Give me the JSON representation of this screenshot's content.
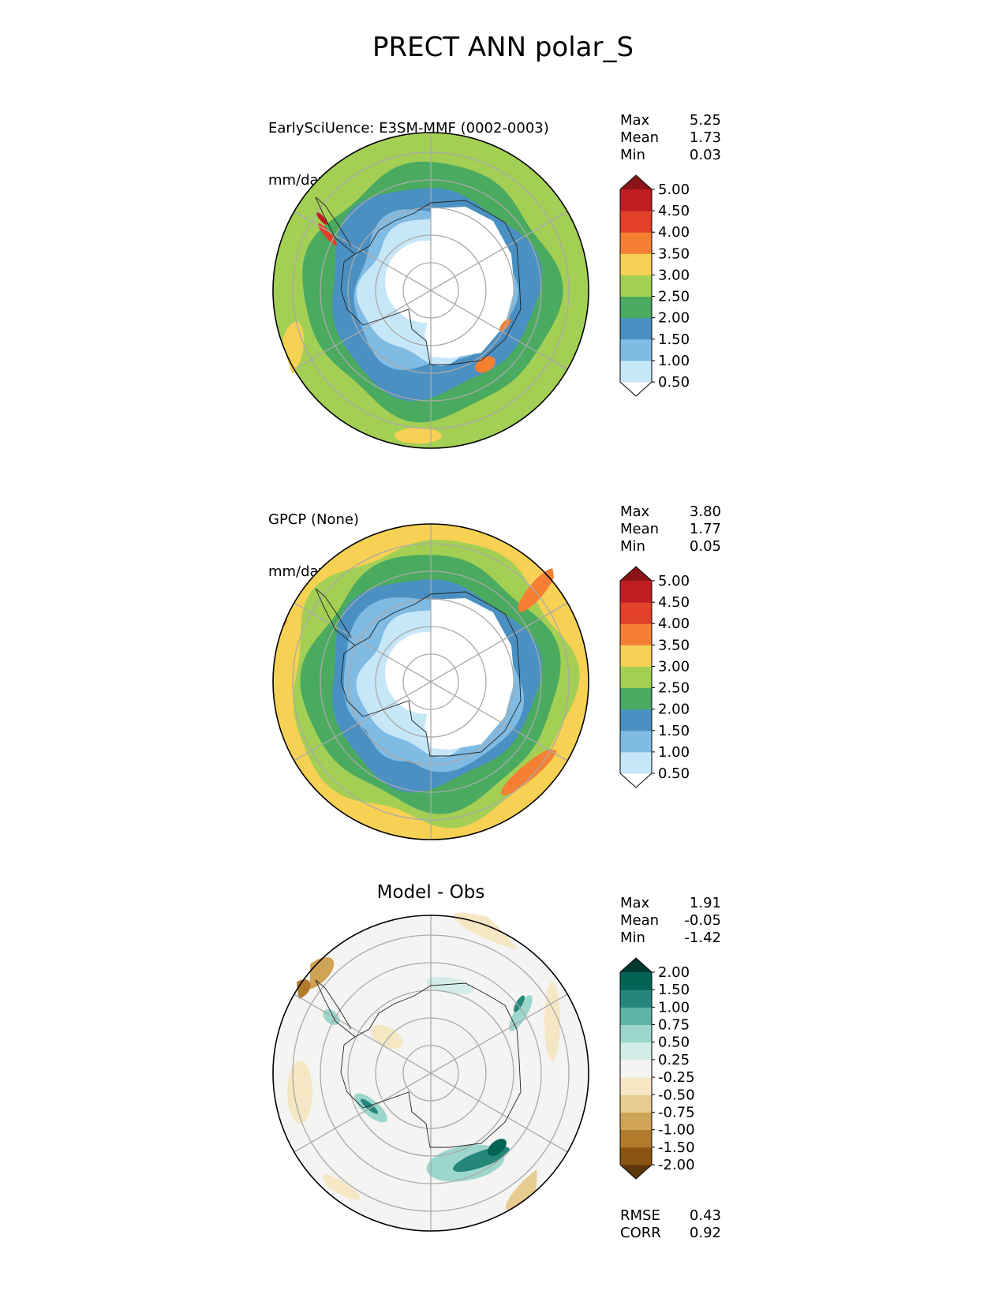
{
  "figure": {
    "title": "PRECT ANN polar_S"
  },
  "chart_data": [
    {
      "type": "heatmap",
      "projection": "south-polar-stereographic",
      "title_line1": "EarlySciUence: E3SM-MMF (0002-0003)",
      "title_line2": "mm/day",
      "stats": [
        {
          "label": "Max",
          "value": "5.25"
        },
        {
          "label": "Mean",
          "value": "1.73"
        },
        {
          "label": "Min",
          "value": "0.03"
        }
      ],
      "colorbar": {
        "levels": [
          "0.50",
          "1.00",
          "1.50",
          "2.00",
          "2.50",
          "3.00",
          "3.50",
          "4.00",
          "4.50",
          "5.00"
        ],
        "colors": [
          "#ffffff",
          "#c6e7f8",
          "#7fbbe3",
          "#4a90c2",
          "#4aaa60",
          "#a3cf55",
          "#f7d154",
          "#f58034",
          "#e24029",
          "#c01c22",
          "#8c1418"
        ],
        "extend": "both"
      }
    },
    {
      "type": "heatmap",
      "projection": "south-polar-stereographic",
      "title_line1": "GPCP (None)",
      "title_line2": "mm/day",
      "stats": [
        {
          "label": "Max",
          "value": "3.80"
        },
        {
          "label": "Mean",
          "value": "1.77"
        },
        {
          "label": "Min",
          "value": "0.05"
        }
      ],
      "colorbar": {
        "levels": [
          "0.50",
          "1.00",
          "1.50",
          "2.00",
          "2.50",
          "3.00",
          "3.50",
          "4.00",
          "4.50",
          "5.00"
        ],
        "colors": [
          "#ffffff",
          "#c6e7f8",
          "#7fbbe3",
          "#4a90c2",
          "#4aaa60",
          "#a3cf55",
          "#f7d154",
          "#f58034",
          "#e24029",
          "#c01c22",
          "#8c1418"
        ],
        "extend": "both"
      }
    },
    {
      "type": "heatmap",
      "projection": "south-polar-stereographic",
      "title": "Model - Obs",
      "stats": [
        {
          "label": "Max",
          "value": "1.91"
        },
        {
          "label": "Mean",
          "value": "-0.05"
        },
        {
          "label": "Min",
          "value": "-1.42"
        }
      ],
      "extra_stats": [
        {
          "label": "RMSE",
          "value": "0.43"
        },
        {
          "label": "CORR",
          "value": "0.92"
        }
      ],
      "colorbar": {
        "levels": [
          "-2.00",
          "-1.50",
          "-1.00",
          "-0.75",
          "-0.50",
          "-0.25",
          "0.25",
          "0.50",
          "0.75",
          "1.00",
          "1.50",
          "2.00"
        ],
        "colors": [
          "#5b3709",
          "#8a5510",
          "#b27a2b",
          "#cfa356",
          "#e6cc8e",
          "#f5e6c4",
          "#f4f4f2",
          "#d3ece8",
          "#9dd6cc",
          "#5fb3a6",
          "#24877a",
          "#036355",
          "#003b31"
        ],
        "extend": "both"
      }
    }
  ]
}
